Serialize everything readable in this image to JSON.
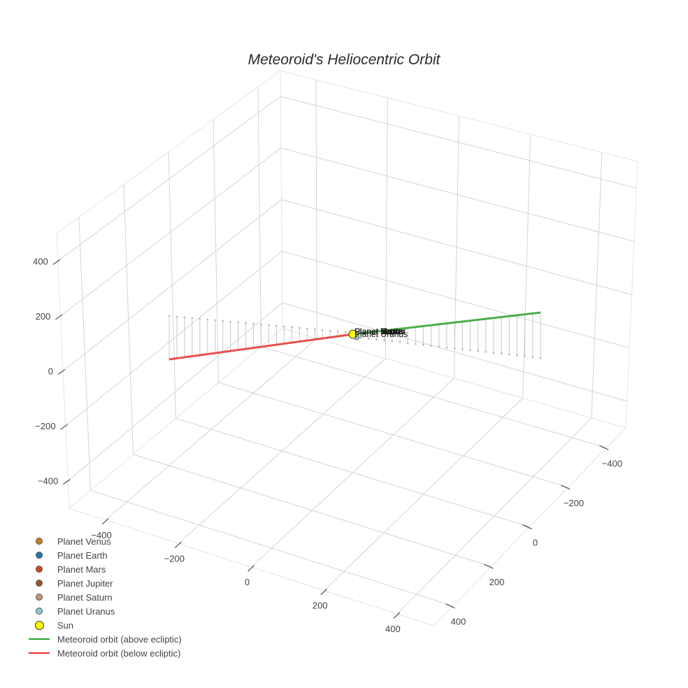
{
  "title": "Meteoroid's Heliocentric Orbit",
  "axes": {
    "z_ticks": [
      "400",
      "200",
      "0",
      "−200",
      "−400"
    ],
    "x_ticks": [
      "−400",
      "−200",
      "0",
      "200",
      "400"
    ],
    "y_ticks": [
      "−400",
      "−200",
      "0",
      "200",
      "400"
    ]
  },
  "point_labels": [
    "Planet Venus",
    "Planet Earth",
    "Planet Mars",
    "Planet Jupiter",
    "Planet Saturn",
    "Planet Uranus"
  ],
  "legend": [
    {
      "label": "Planet Venus",
      "color": "#c7801e",
      "kind": "dot"
    },
    {
      "label": "Planet Earth",
      "color": "#1f77b4",
      "kind": "dot"
    },
    {
      "label": "Planet Mars",
      "color": "#d2461e",
      "kind": "dot"
    },
    {
      "label": "Planet Jupiter",
      "color": "#a0522d",
      "kind": "dot"
    },
    {
      "label": "Planet Saturn",
      "color": "#c19a6b",
      "kind": "dot"
    },
    {
      "label": "Planet Uranus",
      "color": "#8ec9d9",
      "kind": "dot"
    },
    {
      "label": "Sun",
      "color": "#ffff00",
      "kind": "big"
    },
    {
      "label": "Meteoroid orbit (above ecliptic)",
      "color": "#2ca02c",
      "kind": "line"
    },
    {
      "label": "Meteoroid orbit (below ecliptic)",
      "color": "#e8312e",
      "kind": "line"
    }
  ],
  "chart_data": {
    "type": "scatter3d",
    "title": "Meteoroid's Heliocentric Orbit",
    "axis_ranges": {
      "x": [
        -500,
        500
      ],
      "y": [
        -500,
        500
      ],
      "z": [
        -500,
        500
      ]
    },
    "tick_values": [
      -400,
      -200,
      0,
      200,
      400
    ],
    "series": [
      {
        "name": "Sun",
        "type": "marker",
        "x": [
          0
        ],
        "y": [
          0
        ],
        "z": [
          0
        ],
        "color": "#ffff00"
      },
      {
        "name": "Planet Venus",
        "type": "marker",
        "approx_position": "near origin",
        "color": "#c7801e"
      },
      {
        "name": "Planet Earth",
        "type": "marker",
        "approx_position": "near origin",
        "color": "#1f77b4"
      },
      {
        "name": "Planet Mars",
        "type": "marker",
        "approx_position": "near origin",
        "color": "#d2461e"
      },
      {
        "name": "Planet Jupiter",
        "type": "marker",
        "approx_position": "near origin",
        "color": "#a0522d"
      },
      {
        "name": "Planet Saturn",
        "type": "marker",
        "approx_position": "near origin",
        "color": "#c19a6b"
      },
      {
        "name": "Planet Uranus",
        "type": "marker",
        "approx_position": "near origin",
        "color": "#8ec9d9"
      },
      {
        "name": "Meteoroid orbit (above ecliptic)",
        "type": "line",
        "color": "#2ca02c",
        "description": "straight segment from Sun outward, z > 0, with drop lines to ecliptic"
      },
      {
        "name": "Meteoroid orbit (below ecliptic)",
        "type": "line",
        "color": "#e8312e",
        "description": "straight segment from Sun outward, z < 0, with drop lines to ecliptic"
      }
    ],
    "legend_position": "bottom-left",
    "grid": true
  }
}
